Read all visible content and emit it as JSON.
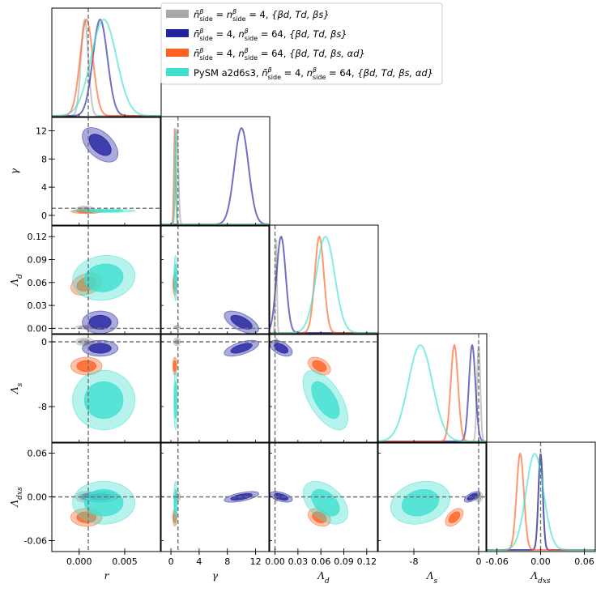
{
  "chart_data": {
    "type": "corner",
    "title": "",
    "parameters": [
      {
        "name": "r",
        "label": "r",
        "range": [
          -0.003,
          0.009
        ],
        "ticks": [
          0.0,
          0.005
        ],
        "tick_labels": [
          "0.000",
          "0.005"
        ],
        "truth": 0.001
      },
      {
        "name": "gamma",
        "label": "γ",
        "range": [
          -1.5,
          14.0
        ],
        "ticks": [
          0,
          4,
          8,
          12
        ],
        "tick_labels": [
          "0",
          "4",
          "8",
          "12"
        ],
        "truth": 1.0
      },
      {
        "name": "Lambda_d",
        "label": "Λd",
        "range": [
          -0.008,
          0.135
        ],
        "ticks": [
          0.0,
          0.03,
          0.06,
          0.09,
          0.12
        ],
        "tick_labels": [
          "0.00",
          "0.03",
          "0.06",
          "0.09",
          "0.12"
        ],
        "truth": 0.0
      },
      {
        "name": "Lambda_s",
        "label": "Λs",
        "range": [
          -12.5,
          1.0
        ],
        "ticks": [
          -8,
          0
        ],
        "tick_labels": [
          "-8",
          "0"
        ],
        "truth": 0.0
      },
      {
        "name": "Lambda_dxs",
        "label": "Λdxs",
        "range": [
          -0.075,
          0.075
        ],
        "ticks": [
          -0.06,
          0.0,
          0.06
        ],
        "tick_labels": [
          "-0.06",
          "0.00",
          "0.06"
        ],
        "truth": 0.0
      }
    ],
    "series": [
      {
        "name": "grey",
        "label": "n̄βside = nβside = 4, {βd, Td, βs}",
        "color": "#a9a9a9",
        "mean": [
          0.0006,
          0.85,
          0.0015,
          0.0,
          0.0
        ],
        "sigma": [
          0.0004,
          0.2,
          0.001,
          0.2,
          0.003
        ],
        "corr": [
          [
            1,
            0,
            0,
            0,
            0
          ],
          [
            0,
            1,
            0,
            0,
            0
          ],
          [
            0,
            0,
            1,
            0,
            0
          ],
          [
            0,
            0,
            0,
            1,
            0
          ],
          [
            0,
            0,
            0,
            0,
            1
          ]
        ]
      },
      {
        "name": "blue",
        "label": "n̄βside = 4, nβside = 64, {βd, Td, βs}",
        "color": "#2323a0",
        "mean": [
          0.0023,
          10.0,
          0.008,
          -0.8,
          0.0
        ],
        "sigma": [
          0.0008,
          1.0,
          0.006,
          0.4,
          0.003
        ],
        "corr": [
          [
            1,
            -0.5,
            0,
            0,
            0
          ],
          [
            -0.5,
            1,
            -0.6,
            0.6,
            0.6
          ],
          [
            0,
            -0.6,
            1,
            -0.5,
            -0.5
          ],
          [
            0,
            0.6,
            -0.5,
            1,
            0.6
          ],
          [
            0,
            0.6,
            -0.5,
            0.6,
            1
          ]
        ]
      },
      {
        "name": "orange",
        "label": "n̄βside = 4, nβside = 64, {βd, Td, βs, αd}",
        "color": "#ff6020",
        "mean": [
          0.0008,
          0.55,
          0.058,
          -3.0,
          -0.028
        ],
        "sigma": [
          0.0007,
          0.12,
          0.006,
          0.45,
          0.005
        ],
        "corr": [
          [
            1,
            0,
            0.3,
            0,
            0
          ],
          [
            0,
            1,
            0,
            0,
            0
          ],
          [
            0.3,
            0,
            1,
            -0.4,
            -0.3
          ],
          [
            0,
            0,
            -0.4,
            1,
            0.5
          ],
          [
            0,
            0,
            -0.3,
            0.5,
            1
          ]
        ]
      },
      {
        "name": "cyan",
        "label": "PySM a2d6s3, n̄βside = 4, nβside = 64, {βd, Td, βs, αd}",
        "color": "#40e0d0",
        "mean": [
          0.0027,
          0.65,
          0.066,
          -7.2,
          -0.008
        ],
        "sigma": [
          0.0014,
          0.1,
          0.012,
          1.5,
          0.012
        ],
        "corr": [
          [
            1,
            0,
            0.1,
            0,
            0
          ],
          [
            0,
            1,
            0,
            0,
            0
          ],
          [
            0.1,
            0,
            1,
            -0.6,
            -0.45
          ],
          [
            0,
            0,
            -0.6,
            1,
            0.2
          ],
          [
            0,
            0,
            -0.45,
            0.2,
            1
          ]
        ]
      }
    ],
    "legend": {
      "position": "top-right",
      "entries": [
        {
          "color": "#a9a9a9",
          "prefix": "",
          "n1_sym": "n̄",
          "n1_val": "= ",
          "n2_val": "4",
          "set": "{βd, Td, βs}",
          "equal_form": true
        },
        {
          "color": "#2323a0",
          "prefix": "",
          "n1_sym": "n̄",
          "n1_val": "4",
          "n2_val": "64",
          "set": "{βd, Td, βs}",
          "equal_form": false
        },
        {
          "color": "#ff6020",
          "prefix": "",
          "n1_sym": "n̄",
          "n1_val": "4",
          "n2_val": "64",
          "set": "{βd, Td, βs, αd}",
          "equal_form": false
        },
        {
          "color": "#40e0d0",
          "prefix": "PySM a2d6s3, ",
          "n1_sym": "n̄",
          "n1_val": "4",
          "n2_val": "64",
          "set": "{βd, Td, βs, αd}",
          "equal_form": false
        }
      ]
    }
  }
}
